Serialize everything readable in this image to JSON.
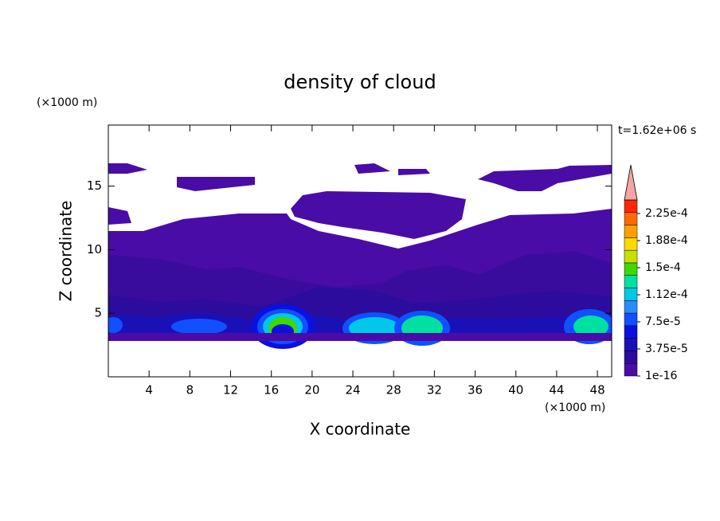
{
  "chart_data": {
    "type": "contour",
    "title": "density of cloud",
    "x_label": "X coordinate",
    "y_label": "Z coordinate",
    "x_unit": "(×1000 m)",
    "y_unit": "(×1000 m)",
    "time_label": "t=1.62e+06 s",
    "xlim": [
      0,
      49.4
    ],
    "ylim": [
      0,
      19.8
    ],
    "xticks": [
      4,
      8,
      12,
      16,
      20,
      24,
      28,
      32,
      36,
      40,
      44,
      48
    ],
    "yticks": [
      5,
      10,
      15
    ],
    "colorbar": {
      "clim": [
        1e-16,
        0.00024375
      ],
      "ticks": [
        {
          "value": 1e-16,
          "label": "1e-16"
        },
        {
          "value": 3.75e-05,
          "label": "3.75e-5"
        },
        {
          "value": 7.5e-05,
          "label": "7.5e-5"
        },
        {
          "value": 0.0001125,
          "label": "1.12e-4"
        },
        {
          "value": 0.00015,
          "label": "1.5e-4"
        },
        {
          "value": 0.0001875,
          "label": "1.88e-4"
        },
        {
          "value": 0.000225,
          "label": "2.25e-4"
        }
      ],
      "colors": [
        "#4a0ca6",
        "#2c0c9c",
        "#1a10b8",
        "#0a10e0",
        "#1050ff",
        "#2a8cff",
        "#00c8e8",
        "#00e0a0",
        "#40d800",
        "#c8e000",
        "#ffd800",
        "#ffa000",
        "#ff6a00",
        "#ff2800"
      ],
      "extend_color": "#f4a4a4"
    }
  }
}
